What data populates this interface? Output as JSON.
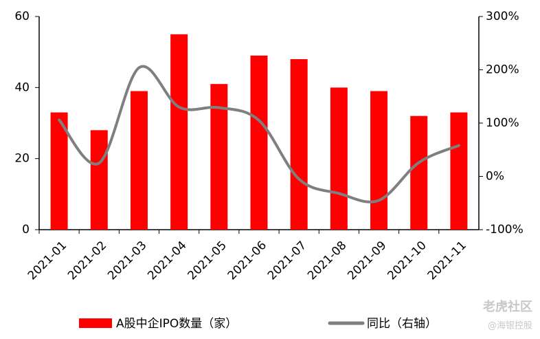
{
  "chart_data": {
    "type": "bar-line",
    "categories": [
      "2021-01",
      "2021-02",
      "2021-03",
      "2021-04",
      "2021-05",
      "2021-06",
      "2021-07",
      "2021-08",
      "2021-09",
      "2021-10",
      "2021-11"
    ],
    "series": [
      {
        "name": "A股中企IPO数量（家）",
        "type": "bar",
        "color": "#ff0000",
        "values": [
          33,
          28,
          39,
          55,
          41,
          49,
          48,
          40,
          39,
          32,
          33
        ]
      },
      {
        "name": "同比（右轴）",
        "type": "line",
        "axis": "y2",
        "color": "#7f7f7f",
        "values": [
          106,
          25,
          204,
          130,
          129,
          105,
          -5,
          -32,
          -45,
          26,
          58
        ]
      }
    ],
    "ylim": [
      0,
      60
    ],
    "yticks": [
      0,
      20,
      40,
      60
    ],
    "y2lim": [
      -100,
      300
    ],
    "y2ticks": [
      {
        "value": -100,
        "label": "-100%"
      },
      {
        "value": 0,
        "label": "0%"
      },
      {
        "value": 100,
        "label": "100%"
      },
      {
        "value": 200,
        "label": "200%"
      },
      {
        "value": 300,
        "label": "300%"
      }
    ],
    "legend": "bottom",
    "watermark": [
      "老虎社区",
      "@海银控股"
    ]
  }
}
